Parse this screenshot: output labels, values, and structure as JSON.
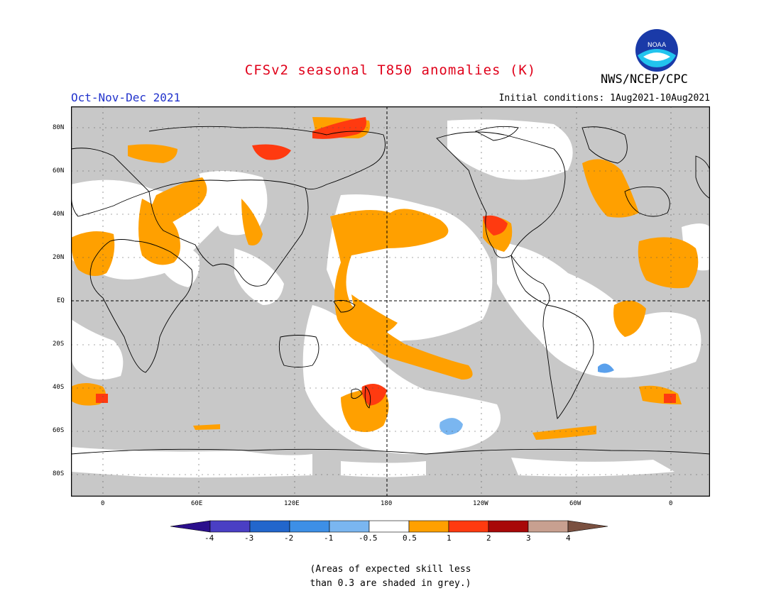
{
  "header": {
    "title": "CFSv2 seasonal T850 anomalies (K)",
    "period": "Oct-Nov-Dec 2021",
    "initial_conditions": "Initial conditions: 1Aug2021-10Aug2021",
    "agency": "NWS/NCEP/CPC",
    "logo_text": "NOAA"
  },
  "map": {
    "lat_labels": [
      "80N",
      "60N",
      "40N",
      "20N",
      "EQ",
      "20S",
      "40S",
      "60S",
      "80S"
    ],
    "lon_labels": [
      "0",
      "60E",
      "120E",
      "180",
      "120W",
      "60W",
      "0"
    ],
    "lon_range": [
      -20,
      380
    ],
    "lat_range": [
      -90,
      90
    ]
  },
  "colorbar": {
    "labels": [
      "-4",
      "-3",
      "-2",
      "-1",
      "-0.5",
      "0.5",
      "1",
      "2",
      "3",
      "4"
    ],
    "colors": [
      "#2b0f8c",
      "#4a3fc4",
      "#2266cc",
      "#3d8fe6",
      "#7ab6f0",
      "#ffffff",
      "#ffa000",
      "#ff3a10",
      "#a80808",
      "#c8a090",
      "#7a5040"
    ]
  },
  "note": {
    "line1": "(Areas of expected skill less",
    "line2": "than 0.3 are shaded in grey.)"
  }
}
